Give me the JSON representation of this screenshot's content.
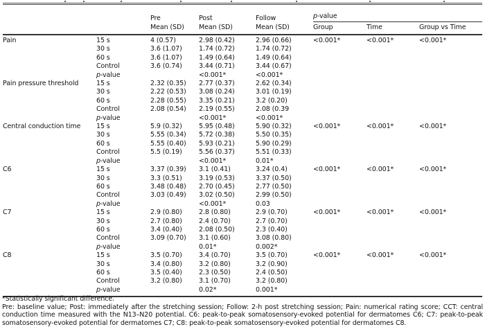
{
  "table": {
    "header": {
      "pre": "Pre",
      "post": "Post",
      "follow": "Follow",
      "mean_sd": "Mean (SD)",
      "p_value": "p-value",
      "group": "Group",
      "time": "Time",
      "group_vs_time": "Group vs Time"
    },
    "sections": [
      {
        "label": "Pain",
        "rows": [
          {
            "sub": "15 s",
            "pre": "4 (0.57)",
            "post": "2.98 (0.42)",
            "follow": "2.96 (0.66)",
            "group": "<0.001*",
            "time": "<0.001*",
            "gvt": "<0.001*"
          },
          {
            "sub": "30 s",
            "pre": "3.6 (1.07)",
            "post": "1.74 (0.72)",
            "follow": "1.74 (0.72)"
          },
          {
            "sub": "60 s",
            "pre": "3.6 (1.07)",
            "post": "1.49 (0.64)",
            "follow": "1.49 (0.64)"
          },
          {
            "sub": "Control",
            "pre": "3.6 (0.74)",
            "post": "3.44 (0.71)",
            "follow": "3.44 (0.67)"
          },
          {
            "sub": "p-value",
            "post": "<0.001*",
            "follow": "<0.001*"
          }
        ]
      },
      {
        "label": "Pain pressure threshold",
        "rows": [
          {
            "sub": "15 s",
            "pre": "2.32 (0.35)",
            "post": "2.77 (0.37)",
            "follow": "2.62 (0.34)"
          },
          {
            "sub": "30 s",
            "pre": "2.22 (0.53)",
            "post": "3.08 (0.24)",
            "follow": "3.01 (0.19)"
          },
          {
            "sub": "60 s",
            "pre": "2.28 (0.55)",
            "post": "3.35 (0.21)",
            "follow": "3.2 (0.20)"
          },
          {
            "sub": "Control",
            "pre": "2.08 (0.54)",
            "post": "2.19 (0.55)",
            "follow": "2.08 (0.39"
          },
          {
            "sub": "p-value",
            "post": "<0.001*",
            "follow": "<0.001*"
          }
        ]
      },
      {
        "label": "Central conduction time",
        "rows": [
          {
            "sub": "15 s",
            "pre": "5.9 (0.32)",
            "post": "5.95 (0.48)",
            "follow": "5.90 (0.32)",
            "group": "<0.001*",
            "time": "<0.001*",
            "gvt": "<0.001*"
          },
          {
            "sub": "30 s",
            "pre": "5.55 (0.34)",
            "post": "5.72 (0.38)",
            "follow": "5.50 (0.35)"
          },
          {
            "sub": "60 s",
            "pre": "5.55 (0.40)",
            "post": "5.93 (0.21)",
            "follow": "5.90 (0.29)"
          },
          {
            "sub": "Control",
            "pre": "5.5 (0.19)",
            "post": "5.56 (0.37)",
            "follow": "5.51 (0.33)"
          },
          {
            "sub": "p-value",
            "post": "<0.001*",
            "follow": "0.01*"
          }
        ]
      },
      {
        "label": "C6",
        "rows": [
          {
            "sub": "15 s",
            "pre": "3.37 (0.39)",
            "post": "3.1 (0.41)",
            "follow": "3.24 (0.4)",
            "group": "<0.001*",
            "time": "<0.001*",
            "gvt": "<0.001*"
          },
          {
            "sub": "30 s",
            "pre": "3.3 (0.51)",
            "post": "3.19 (0.53)",
            "follow": "3.37 (0.50)"
          },
          {
            "sub": "60 s",
            "pre": "3.48 (0.48)",
            "post": "2.70 (0.45)",
            "follow": "2.77 (0.50)"
          },
          {
            "sub": "Control",
            "pre": "3.03 (0.49)",
            "post": "3.02 (0.50)",
            "follow": "2.99 (0.50)"
          },
          {
            "sub": "p-value",
            "post": "<0.001*",
            "follow": "0.03"
          }
        ]
      },
      {
        "label": "C7",
        "rows": [
          {
            "sub": "15 s",
            "pre": "2.9 (0.80)",
            "post": "2.8 (0.80)",
            "follow": "2.9 (0.70)",
            "group": "<0.001*",
            "time": "<0.001*",
            "gvt": "<0.001*"
          },
          {
            "sub": "30 s",
            "pre": "2.7 (0.80)",
            "post": "2.4 (0.70)",
            "follow": "2.7 (0.70)"
          },
          {
            "sub": "60 s",
            "pre": "3.4 (0.40)",
            "post": "2.08 (0.50)",
            "follow": "2.3 (0.40)"
          },
          {
            "sub": "Control",
            "pre": "3.09 (0.70)",
            "post": "3.1 (0.60)",
            "follow": "3.08 (0.80)"
          },
          {
            "sub": "p-value",
            "post": "0.01*",
            "follow": "0.002*"
          }
        ]
      },
      {
        "label": "C8",
        "rows": [
          {
            "sub": "15 s",
            "pre": "3.5 (0.70)",
            "post": "3.4 (0.70)",
            "follow": "3.5 (0.70)",
            "group": "<0.001*",
            "time": "<0.001*",
            "gvt": "<0.001*"
          },
          {
            "sub": "30 s",
            "pre": "3.4 (0.80)",
            "post": "3.2 (0.80)",
            "follow": "3.2 (0.90)"
          },
          {
            "sub": "60 s",
            "pre": "3.5 (0.40)",
            "post": "2.3 (0.50)",
            "follow": "2.4 (0.50)"
          },
          {
            "sub": "Control",
            "pre": "3.2 (0.80)",
            "post": "3.1 (0.70)",
            "follow": "3.2 (0.80)"
          },
          {
            "sub": "p-value",
            "post": "0.02*",
            "follow": "0.001*"
          }
        ]
      }
    ]
  },
  "footnotes": {
    "significance": "*Statistically significant difference.",
    "abbreviations": "Pre: baseline value; Post: immediately after the stretching session; Follow: 2-h post stretching session; Pain: numerical rating score; CCT: central conduction time measured with the N13–N20 potential. C6: peak-to-peak somatosensory-evoked potential for dermatomes C6; C7: peak-to-peak somatosensory-evoked potential for dermatomes C7; C8: peak-to-peak somatosensory-evoked potential for dermatomes C8."
  }
}
